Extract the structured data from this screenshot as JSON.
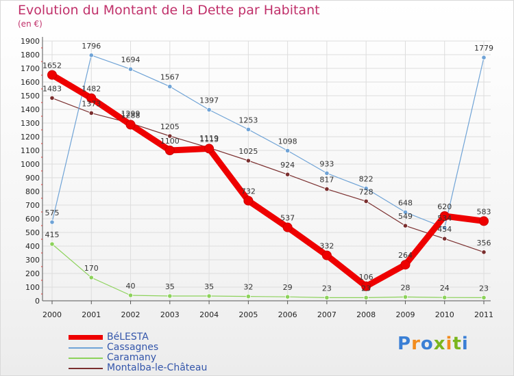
{
  "title": "Evolution du Montant de la Dette par Habitant",
  "subtitle": "(en €)",
  "brand": {
    "text": "Proxiti",
    "colors": [
      "#3a7fd5",
      "#f28c1e",
      "#3a7fd5",
      "#7ab51d",
      "#f28c1e",
      "#7ab51d",
      "#3a7fd5"
    ]
  },
  "chart_data": {
    "type": "line",
    "x": [
      "2000",
      "2001",
      "2002",
      "2003",
      "2004",
      "2005",
      "2006",
      "2007",
      "2008",
      "2009",
      "2010",
      "2011"
    ],
    "ylim": [
      0,
      1900
    ],
    "yticks": [
      0,
      100,
      200,
      300,
      400,
      500,
      600,
      700,
      800,
      900,
      1000,
      1100,
      1200,
      1300,
      1400,
      1500,
      1600,
      1700,
      1800,
      1900
    ],
    "grid": true,
    "legend": "bottom-left",
    "series": [
      {
        "name": "Montalba-le-Château",
        "color": "#7a2e2e",
        "values": [
          1483,
          1373,
          1299,
          1205,
          1119,
          1025,
          924,
          817,
          728,
          549,
          454,
          356
        ],
        "labels": [
          "1483",
          "1373",
          "1299",
          "1205",
          "1119",
          "1025",
          "924",
          "817",
          "728",
          "549",
          "454",
          "356"
        ]
      },
      {
        "name": "Caramany",
        "color": "#8cd25a",
        "values": [
          415,
          170,
          40,
          35,
          35,
          32,
          29,
          23,
          23,
          28,
          24,
          23
        ],
        "labels": [
          "415",
          "170",
          "40",
          "35",
          "35",
          "32",
          "29",
          "23",
          "23",
          "28",
          "24",
          "23"
        ]
      },
      {
        "name": "Cassagnes",
        "color": "#6fa3d6",
        "values": [
          575,
          1796,
          1694,
          1567,
          1397,
          1253,
          1098,
          933,
          822,
          648,
          534,
          1779
        ],
        "labels": [
          "575",
          "1796",
          "1694",
          "1567",
          "1397",
          "1253",
          "1098",
          "933",
          "822",
          "648",
          "534",
          "1779"
        ]
      },
      {
        "name": "BéLESTA",
        "color": "#ee0000",
        "values": [
          1652,
          1482,
          1288,
          1100,
          1113,
          732,
          537,
          332,
          106,
          264,
          620,
          583
        ],
        "labels": [
          "1652",
          "1482",
          "1288",
          "1100",
          "1113",
          "732",
          "537",
          "332",
          "106",
          "264",
          "620",
          "583"
        ]
      }
    ],
    "legend_entries": [
      {
        "name": "BéLESTA",
        "color": "#ee0000"
      },
      {
        "name": "Cassagnes",
        "color": "#6fa3d6"
      },
      {
        "name": "Caramany",
        "color": "#8cd25a"
      },
      {
        "name": "Montalba-le-Château",
        "color": "#7a2e2e"
      }
    ]
  }
}
